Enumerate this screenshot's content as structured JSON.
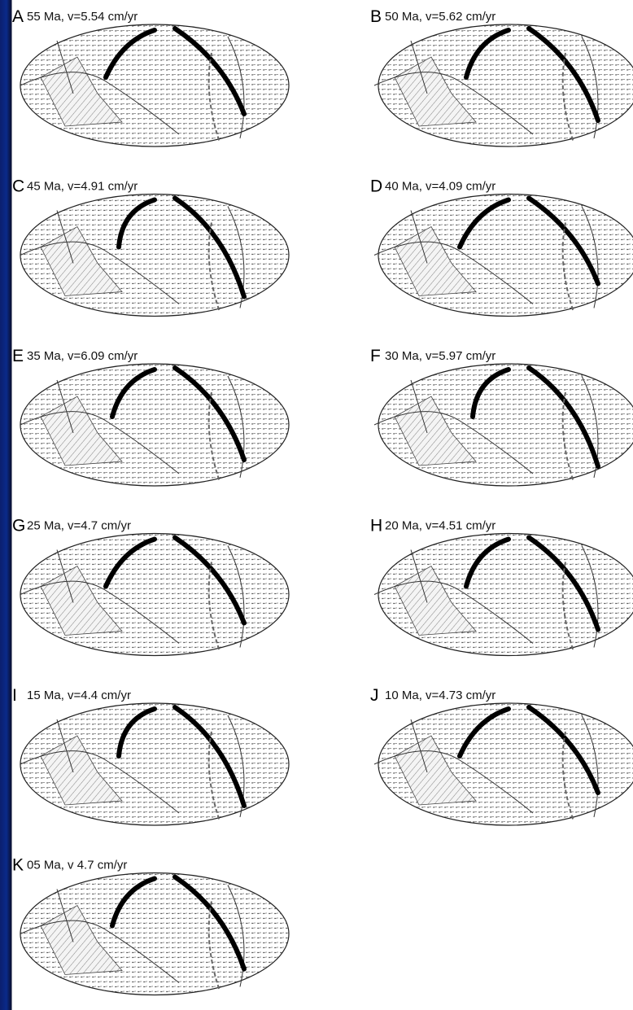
{
  "panels": [
    {
      "letter": "A",
      "caption": "55 Ma, v=5.54 cm/yr"
    },
    {
      "letter": "B",
      "caption": "50 Ma, v=5.62 cm/yr"
    },
    {
      "letter": "C",
      "caption": "45 Ma, v=4.91 cm/yr"
    },
    {
      "letter": "D",
      "caption": "40 Ma, v=4.09 cm/yr"
    },
    {
      "letter": "E",
      "caption": "35 Ma, v=6.09 cm/yr"
    },
    {
      "letter": "F",
      "caption": "30 Ma, v=5.97 cm/yr"
    },
    {
      "letter": "G",
      "caption": "25 Ma, v=4.7 cm/yr"
    },
    {
      "letter": "H",
      "caption": "20 Ma, v=4.51 cm/yr"
    },
    {
      "letter": "I",
      "caption": "15 Ma, v=4.4 cm/yr"
    },
    {
      "letter": "J",
      "caption": "10 Ma, v=4.73 cm/yr"
    },
    {
      "letter": "K",
      "caption": "05 Ma, v 4.7 cm/yr"
    }
  ]
}
